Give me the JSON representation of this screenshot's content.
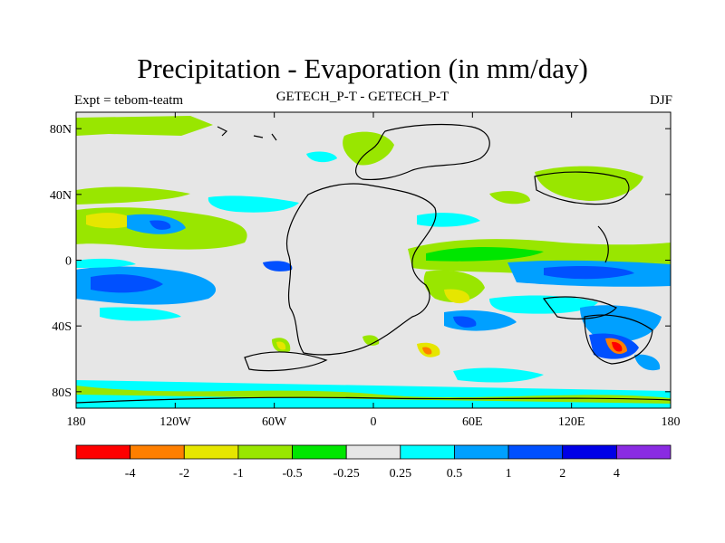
{
  "title": "Precipitation - Evaporation (in mm/day)",
  "left_label": "Expt = tebom-teatm",
  "center_label": "GETECH_P-T - GETECH_P-T",
  "right_label": "DJF",
  "x_ticks": [
    {
      "value": -180,
      "label": "180"
    },
    {
      "value": -120,
      "label": "120W"
    },
    {
      "value": -60,
      "label": "60W"
    },
    {
      "value": 0,
      "label": "0"
    },
    {
      "value": 60,
      "label": "60E"
    },
    {
      "value": 120,
      "label": "120E"
    },
    {
      "value": 180,
      "label": "180"
    }
  ],
  "y_ticks": [
    {
      "value": 80,
      "label": "80N"
    },
    {
      "value": 40,
      "label": "40N"
    },
    {
      "value": 0,
      "label": "0"
    },
    {
      "value": -40,
      "label": "40S"
    },
    {
      "value": -80,
      "label": "80S"
    }
  ],
  "colorbar": {
    "colors": [
      "#ff0000",
      "#ff7f00",
      "#e6e600",
      "#99e600",
      "#00e600",
      "#e6e6e6",
      "#00ffff",
      "#00a0ff",
      "#0050ff",
      "#0000e6",
      "#8a2be2"
    ],
    "labels": [
      "-4",
      "-2",
      "-1",
      "-0.5",
      "-0.25",
      "0.25",
      "0.5",
      "1",
      "2",
      "4"
    ]
  },
  "colors": {
    "background": "#e6e6e6",
    "light_green": "#99e600",
    "green": "#00e600",
    "yellow": "#e6e600",
    "cyan": "#00ffff",
    "light_blue": "#00a0ff",
    "blue": "#0050ff",
    "dark_blue": "#0000e6",
    "orange": "#ff7f00",
    "red": "#ff0000"
  }
}
